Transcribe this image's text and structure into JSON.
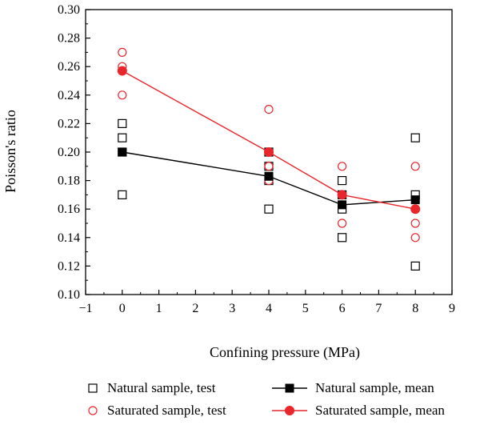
{
  "chart_data": {
    "type": "scatter",
    "xlabel": "Confining pressure (MPa)",
    "ylabel": "Poisson's ratio",
    "xlim": [
      -1,
      9
    ],
    "ylim": [
      0.1,
      0.3
    ],
    "xticks": [
      -1,
      0,
      1,
      2,
      3,
      4,
      5,
      6,
      7,
      8,
      9
    ],
    "xtick_labels": [
      "−1",
      "0",
      "1",
      "2",
      "3",
      "4",
      "5",
      "6",
      "7",
      "8",
      "9"
    ],
    "yticks": [
      0.1,
      0.12,
      0.14,
      0.16,
      0.18,
      0.2,
      0.22,
      0.24,
      0.26,
      0.28,
      0.3
    ],
    "ytick_labels": [
      "0.10",
      "0.12",
      "0.14",
      "0.16",
      "0.18",
      "0.20",
      "0.22",
      "0.24",
      "0.26",
      "0.28",
      "0.30"
    ],
    "grid": false,
    "legend_position": "bottom",
    "series": [
      {
        "name": "Natural sample, test",
        "kind": "scatter",
        "marker": "open-square",
        "color": "#000000",
        "points": [
          [
            0,
            0.17
          ],
          [
            0,
            0.2
          ],
          [
            0,
            0.21
          ],
          [
            0,
            0.22
          ],
          [
            4,
            0.16
          ],
          [
            4,
            0.18
          ],
          [
            4,
            0.19
          ],
          [
            4,
            0.2
          ],
          [
            6,
            0.14
          ],
          [
            6,
            0.16
          ],
          [
            6,
            0.17
          ],
          [
            6,
            0.18
          ],
          [
            8,
            0.12
          ],
          [
            8,
            0.17
          ],
          [
            8,
            0.21
          ]
        ]
      },
      {
        "name": "Saturated sample, test",
        "kind": "scatter",
        "marker": "open-circle",
        "color": "#e8262b",
        "points": [
          [
            0,
            0.24
          ],
          [
            0,
            0.26
          ],
          [
            0,
            0.27
          ],
          [
            4,
            0.18
          ],
          [
            4,
            0.19
          ],
          [
            4,
            0.2
          ],
          [
            4,
            0.23
          ],
          [
            6,
            0.15
          ],
          [
            6,
            0.17
          ],
          [
            6,
            0.19
          ],
          [
            8,
            0.14
          ],
          [
            8,
            0.15
          ],
          [
            8,
            0.16
          ],
          [
            8,
            0.19
          ]
        ]
      },
      {
        "name": "Natural sample, mean",
        "kind": "line",
        "marker": "filled-square",
        "color": "#000000",
        "x": [
          0,
          4,
          6,
          8
        ],
        "y": [
          0.2,
          0.183,
          0.163,
          0.1665
        ]
      },
      {
        "name": "Saturated sample, mean",
        "kind": "line",
        "marker": "filled-circle",
        "color": "#e8262b",
        "x": [
          0,
          4,
          6,
          8
        ],
        "y": [
          0.257,
          0.2,
          0.17,
          0.16
        ]
      }
    ]
  }
}
